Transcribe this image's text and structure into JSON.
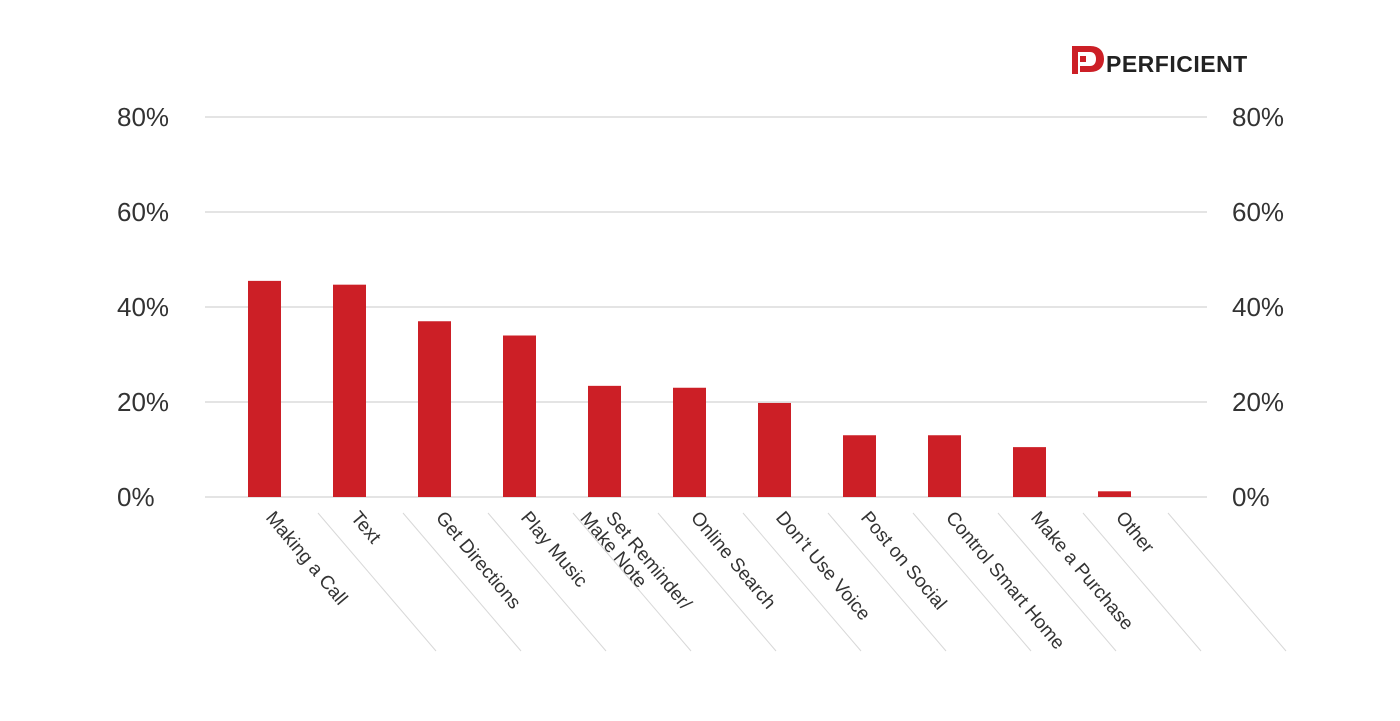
{
  "logo": {
    "text": "PERFICIENT",
    "mark_color": "#cc1f26"
  },
  "colors": {
    "bar": "#cc1f26",
    "grid": "#dcdcdc",
    "text": "#333333",
    "separator": "#d8d8d8"
  },
  "chart_data": {
    "type": "bar",
    "categories": [
      "Making a Call",
      "Text",
      "Get Directions",
      "Play Music",
      "Set Reminder/ Make Note",
      "Online Search",
      "Don't Use Voice",
      "Post on Social",
      "Control Smart Home",
      "Make a Purchase",
      "Other"
    ],
    "category_lines": [
      [
        "Making a Call"
      ],
      [
        "Text"
      ],
      [
        "Get Directions"
      ],
      [
        "Play Music"
      ],
      [
        "Set Reminder/",
        "Make Note"
      ],
      [
        "Online Search"
      ],
      [
        "Don’t Use Voice"
      ],
      [
        "Post on Social"
      ],
      [
        "Control Smart Home"
      ],
      [
        "Make a Purchase"
      ],
      [
        "Other"
      ]
    ],
    "values": [
      45.5,
      44.7,
      37,
      34,
      23.4,
      23,
      19.8,
      13,
      13,
      10.5,
      1.2
    ],
    "ylim": [
      0,
      80
    ],
    "yticks": [
      0,
      20,
      40,
      60,
      80
    ],
    "ytick_labels": [
      "0%",
      "20%",
      "40%",
      "60%",
      "80%"
    ],
    "grid": true,
    "legend": "none",
    "title": "",
    "xlabel": "",
    "ylabel": ""
  }
}
